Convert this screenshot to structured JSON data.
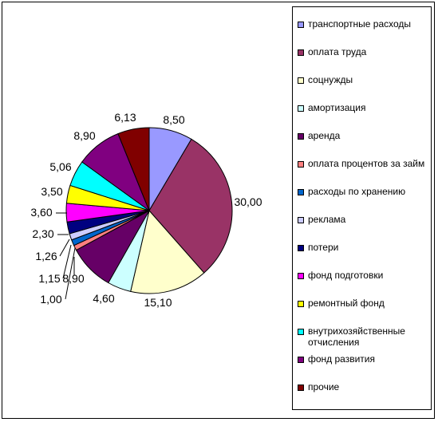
{
  "chart_data": {
    "type": "pie",
    "title": "",
    "legend_position": "right",
    "slices": [
      {
        "name": "транспортные расходы",
        "label": "8,50",
        "value": 8.5,
        "color": "#9999FF"
      },
      {
        "name": "оплата труда",
        "label": "30,00",
        "value": 30.0,
        "color": "#993366"
      },
      {
        "name": "соцнужды",
        "label": "15,10",
        "value": 15.1,
        "color": "#FFFFCC"
      },
      {
        "name": "амортизация",
        "label": "4,60",
        "value": 4.6,
        "color": "#CCFFFF"
      },
      {
        "name": "аренда",
        "label": "8,90",
        "value": 8.9,
        "color": "#660066"
      },
      {
        "name": "оплата процентов за займ",
        "label": "1,00",
        "value": 1.0,
        "color": "#FF8080"
      },
      {
        "name": "расходы по хранению",
        "label": "1,15",
        "value": 1.15,
        "color": "#0066CC"
      },
      {
        "name": "реклама",
        "label": "1,26",
        "value": 1.26,
        "color": "#CCCCFF"
      },
      {
        "name": "потери",
        "label": "2,30",
        "value": 2.3,
        "color": "#000080"
      },
      {
        "name": "фонд подготовки",
        "label": "3,60",
        "value": 3.6,
        "color": "#FF00FF"
      },
      {
        "name": "ремонтный фонд",
        "label": "3,50",
        "value": 3.5,
        "color": "#FFFF00"
      },
      {
        "name": "внутрихозяйственные отчисления",
        "label": "5,06",
        "value": 5.06,
        "color": "#00FFFF"
      },
      {
        "name": "фонд развития",
        "label": "8,90",
        "value": 8.9,
        "color": "#800080"
      },
      {
        "name": "прочие",
        "label": "6,13",
        "value": 6.13,
        "color": "#800000"
      }
    ]
  },
  "legend": {
    "items": [
      {
        "label": "транспортные расходы"
      },
      {
        "label": "оплата труда"
      },
      {
        "label": "соцнужды"
      },
      {
        "label": "амортизация"
      },
      {
        "label": "аренда"
      },
      {
        "label": "оплата процентов за займ"
      },
      {
        "label": "расходы по хранению"
      },
      {
        "label": "реклама"
      },
      {
        "label": "потери"
      },
      {
        "label": "фонд подготовки"
      },
      {
        "label": "ремонтный фонд"
      },
      {
        "label": "внутрихозяйственные отчисления"
      },
      {
        "label": "фонд развития"
      },
      {
        "label": "прочие"
      }
    ]
  }
}
